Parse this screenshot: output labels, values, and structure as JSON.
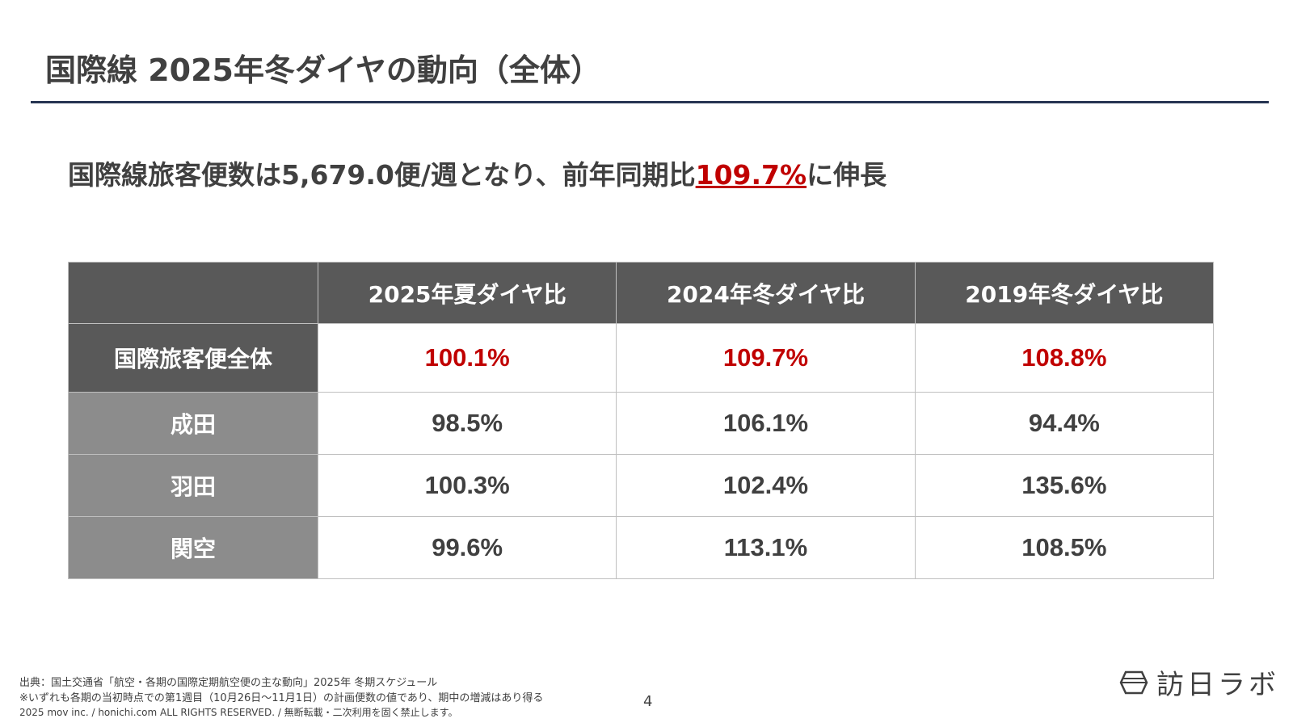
{
  "title": "国際線 2025年冬ダイヤの動向（全体）",
  "headline": {
    "prefix": "国際線旅客便数は5,679.0便/週となり、前年同期比",
    "highlight": "109.7%",
    "suffix": "に伸長"
  },
  "table": {
    "columns": [
      "2025年夏ダイヤ比",
      "2024年冬ダイヤ比",
      "2019年冬ダイヤ比"
    ],
    "rows": [
      {
        "label": "国際旅客便全体",
        "values": [
          "100.1%",
          "109.7%",
          "108.8%"
        ]
      },
      {
        "label": "成田",
        "values": [
          "98.5%",
          "106.1%",
          "94.4%"
        ]
      },
      {
        "label": "羽田",
        "values": [
          "100.3%",
          "102.4%",
          "135.6%"
        ]
      },
      {
        "label": "関空",
        "values": [
          "99.6%",
          "113.1%",
          "108.5%"
        ]
      }
    ]
  },
  "footer": {
    "source": "出典：国土交通省「航空・各期の国際定期航空便の主な動向」2025年 冬期スケジュール",
    "note": "※いずれも各期の当初時点での第1週目（10月26日～11月1日）の計画便数の値であり、期中の増減はあり得る",
    "copyright": "2025 mov inc. / honichi.com ALL RIGHTS RESERVED. / 無断転載・二次利用を固く禁止します。",
    "page": "4"
  },
  "logo": {
    "text": "訪日ラボ"
  },
  "colors": {
    "accent": "#c00000",
    "rule": "#263452",
    "header": "#595959",
    "rowhead": "#8c8c8c"
  }
}
